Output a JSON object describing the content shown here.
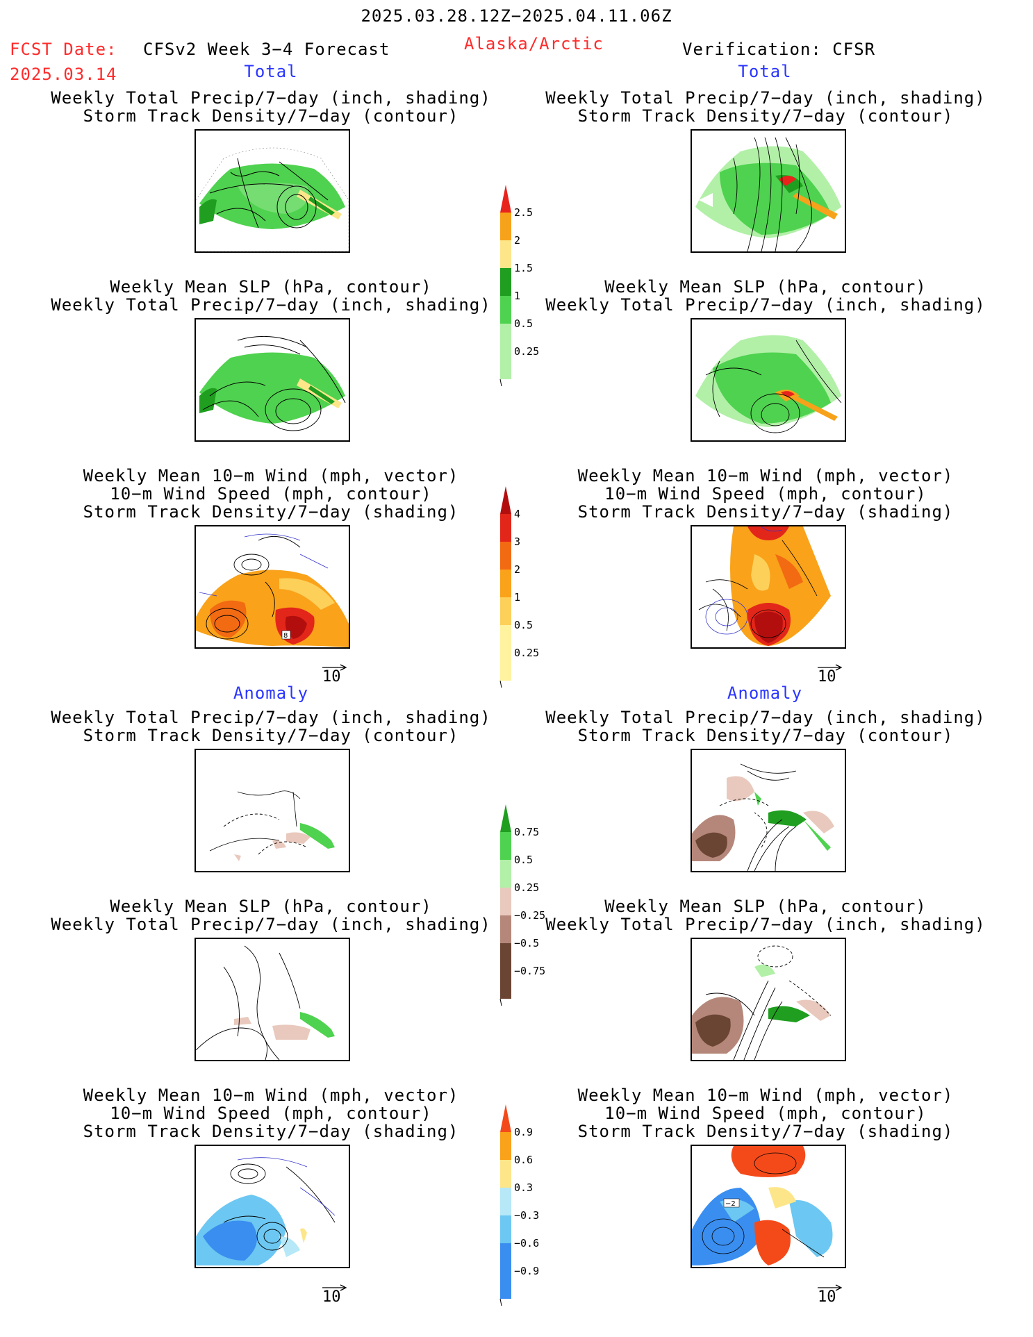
{
  "header": {
    "title": "2025.03.28.12Z−2025.04.11.06Z",
    "fcst_date_label": "FCST Date:",
    "fcst_date_value": "2025.03.14",
    "forecast_name": "CFSv2 Week 3−4 Forecast",
    "region": "Alaska/Arctic",
    "verification": "Verification: CFSR"
  },
  "sections": {
    "total_left": "Total",
    "total_right": "Total",
    "anomaly_left": "Anomaly",
    "anomaly_right": "Anomaly"
  },
  "panel_titles": {
    "precip_track": [
      "Weekly Total Precip/7−day (inch, shading)",
      "Storm Track Density/7−day (contour)"
    ],
    "slp_precip": [
      "Weekly Mean SLP (hPa, contour)",
      "Weekly Total Precip/7−day (inch, shading)"
    ],
    "wind": [
      "Weekly Mean 10−m Wind (mph, vector)",
      "10−m Wind Speed (mph, contour)",
      "Storm Track Density/7−day (shading)"
    ]
  },
  "colorbars": {
    "total_precip": {
      "labels": [
        "2.5",
        "2",
        "1.5",
        "1",
        "0.5",
        "0.25"
      ],
      "colors": [
        "#e8231c",
        "#f7a21b",
        "#fde68a",
        "#1f9e1f",
        "#4fd24f",
        "#b2f0a8"
      ]
    },
    "total_track": {
      "labels": [
        "4",
        "3",
        "2",
        "1",
        "0.5",
        "0.25"
      ],
      "colors": [
        "#b30e0e",
        "#e3261a",
        "#f26a12",
        "#f9a21a",
        "#fdd05a",
        "#fff3a0"
      ]
    },
    "anom_precip": {
      "labels": [
        "0.75",
        "0.5",
        "0.25",
        "−0.25",
        "−0.5",
        "−0.75"
      ],
      "colors": [
        "#1f9e1f",
        "#4fd24f",
        "#b2f0a8",
        "#e9c9bd",
        "#b5877a",
        "#6b4534"
      ]
    },
    "anom_track": {
      "labels": [
        "0.9",
        "0.6",
        "0.3",
        "−0.3",
        "−0.6",
        "−0.9"
      ],
      "colors": [
        "#f44a1a",
        "#f9a21a",
        "#fde68a",
        "#b6e8f7",
        "#6cc7f2",
        "#3a8ef0"
      ]
    }
  },
  "vector_label": "10",
  "map_inset_labels": {
    "left_wind_total": "8",
    "right_wind_anom": "−2"
  }
}
